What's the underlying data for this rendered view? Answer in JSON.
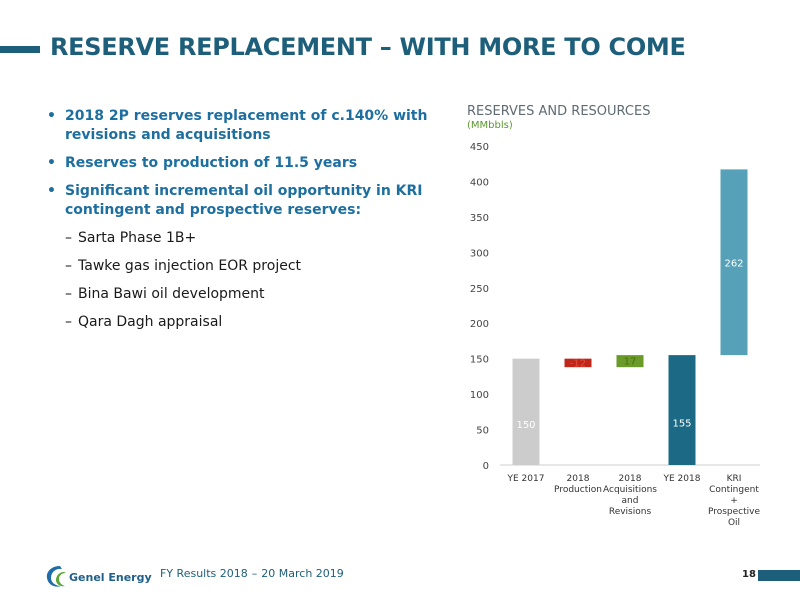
{
  "slide": {
    "title": "RESERVE REPLACEMENT – WITH MORE TO COME",
    "bullets": [
      "2018 2P reserves replacement of c.140% with revisions and acquisitions",
      "Reserves to production of 11.5 years",
      "Significant incremental oil opportunity in KRI contingent and prospective reserves:"
    ],
    "sub_bullets": [
      "Sarta Phase 1B+",
      "Tawke gas injection EOR project",
      "Bina Bawi oil development",
      "Qara Dagh appraisal"
    ],
    "bullet_symbol": "•",
    "dash_symbol": "–"
  },
  "chart_data": {
    "type": "bar",
    "subtype": "waterfall",
    "title": "RESERVES AND RESOURCES",
    "subtitle": "(MMbbls)",
    "categories": [
      "YE 2017",
      "2018 Production",
      "2018 Acquisitions and Revisions",
      "YE 2018",
      "KRI Contingent + Prospective Oil"
    ],
    "category_lines": [
      [
        "YE 2017"
      ],
      [
        "2018",
        "Production"
      ],
      [
        "2018",
        "Acquisitions",
        "and",
        "Revisions"
      ],
      [
        "YE 2018"
      ],
      [
        "KRI",
        "Contingent",
        "+",
        "Prospective",
        "Oil"
      ]
    ],
    "bars": [
      {
        "label": "150",
        "start": 0,
        "end": 150,
        "color": "#cccccc",
        "label_color": "#ffffff"
      },
      {
        "label": "-12",
        "start": 138,
        "end": 150,
        "color": "#c0271b",
        "label_color": "#e84a3a"
      },
      {
        "label": "17",
        "start": 138,
        "end": 155,
        "color": "#6a9a28",
        "label_color": "#4a6f12"
      },
      {
        "label": "155",
        "start": 0,
        "end": 155,
        "color": "#1b6984",
        "label_color": "#ffffff"
      },
      {
        "label": "262",
        "start": 155,
        "end": 417,
        "color": "#56a1b8",
        "label_color": "#ffffff"
      }
    ],
    "ylim": [
      0,
      450
    ],
    "yticks": [
      0,
      50,
      100,
      150,
      200,
      250,
      300,
      350,
      400,
      450
    ],
    "grid": false,
    "axis_color": "#cfcfcf"
  },
  "footer": {
    "company": "Genel Energy",
    "event": "FY Results 2018",
    "separator": "–",
    "date": "20 March 2019",
    "page": "18"
  }
}
